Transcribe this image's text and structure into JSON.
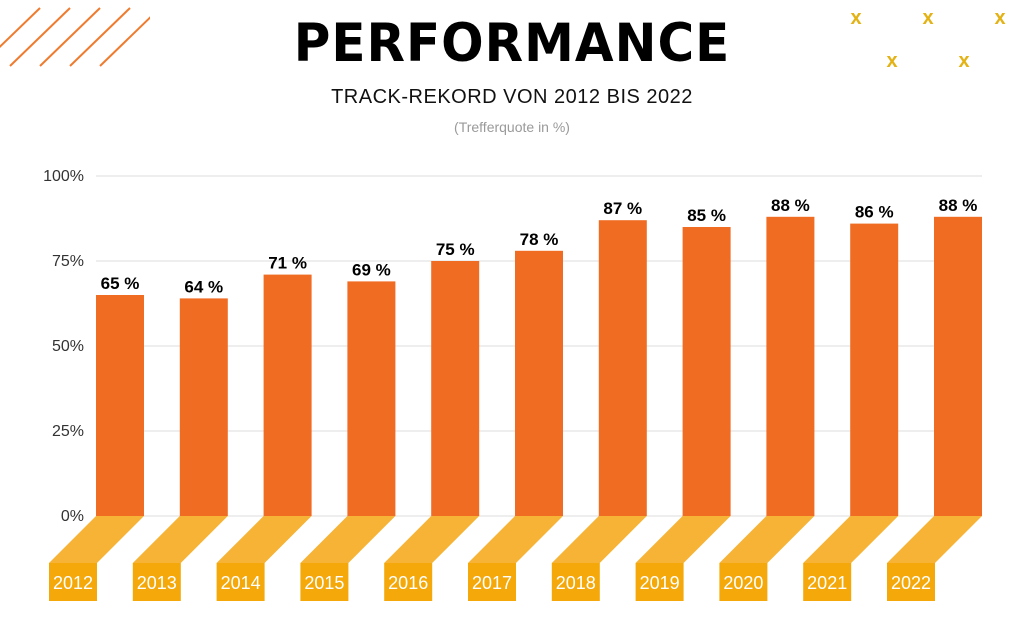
{
  "header": {
    "title": "PERFORMANCE",
    "subtitle": "TRACK-REKORD VON 2012 BIS 2022",
    "note": "(Trefferquote in %)"
  },
  "colors": {
    "bar": "#EF6C22",
    "platform_top": "#F6B335",
    "platform_front": "#F4A809",
    "grid": "#dddddd",
    "deco_lines": "#EF7B2E",
    "deco_x": "#E3B215"
  },
  "decorations": {
    "x_glyph": "x",
    "x_count": 5
  },
  "chart_data": {
    "type": "bar",
    "categories": [
      "2012",
      "2013",
      "2014",
      "2015",
      "2016",
      "2017",
      "2018",
      "2019",
      "2020",
      "2021",
      "2022"
    ],
    "values": [
      65,
      64,
      71,
      69,
      75,
      78,
      87,
      85,
      88,
      86,
      88
    ],
    "data_labels": [
      "65 %",
      "64 %",
      "71 %",
      "69 %",
      "75 %",
      "78 %",
      "87 %",
      "85 %",
      "88 %",
      "86 %",
      "88 %"
    ],
    "yticks": [
      "0%",
      "25%",
      "50%",
      "75%",
      "100%"
    ],
    "ylim": [
      0,
      100
    ],
    "grid": true,
    "legend": "none"
  }
}
